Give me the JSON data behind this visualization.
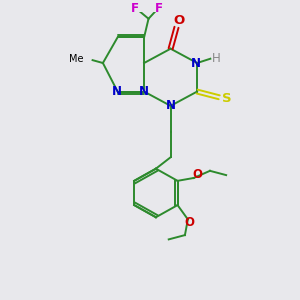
{
  "bg_color": "#e8e8ec",
  "bond_color": "#2d8a2d",
  "n_color": "#0000cc",
  "o_color": "#cc0000",
  "s_color": "#cccc00",
  "f_color": "#cc00cc",
  "h_color": "#888888",
  "figsize": [
    3.0,
    3.0
  ],
  "dpi": 100,
  "xlim": [
    0,
    10
  ],
  "ylim": [
    0,
    10
  ]
}
